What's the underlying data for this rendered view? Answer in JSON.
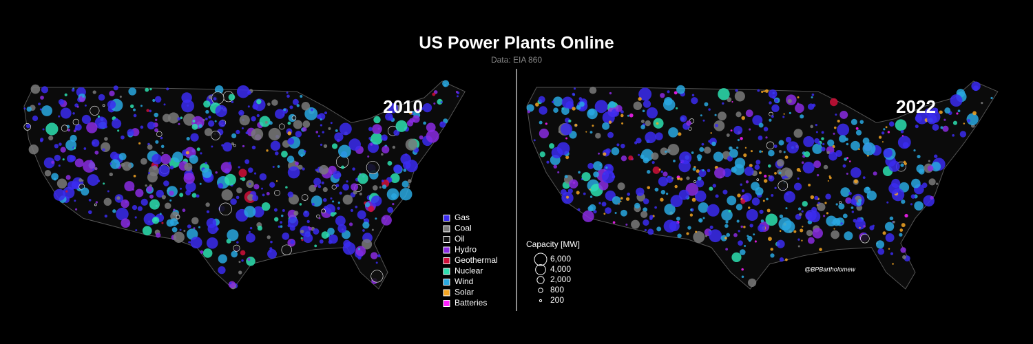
{
  "title": "US Power Plants Online",
  "subtitle": "Data: EIA 860",
  "maps": [
    {
      "year": "2010"
    },
    {
      "year": "2022"
    }
  ],
  "legend": {
    "items": [
      {
        "label": "Gas",
        "color": "#3b2cf0"
      },
      {
        "label": "Coal",
        "color": "#7a7a7a"
      },
      {
        "label": "Oil",
        "color": "#111111"
      },
      {
        "label": "Hydro",
        "color": "#8a2be2"
      },
      {
        "label": "Geothermal",
        "color": "#d0103a"
      },
      {
        "label": "Nuclear",
        "color": "#2de0b0"
      },
      {
        "label": "Wind",
        "color": "#29a8e0"
      },
      {
        "label": "Solar",
        "color": "#f5a623"
      },
      {
        "label": "Batteries",
        "color": "#ff20ff"
      }
    ]
  },
  "capacity_legend": {
    "title": "Capacity [MW]",
    "sizes": [
      {
        "value": 6000,
        "label": "6,000"
      },
      {
        "value": 4000,
        "label": "4,000"
      },
      {
        "value": 2000,
        "label": "2,000"
      },
      800,
      200
    ]
  },
  "credit": "@BPBartholomew"
}
